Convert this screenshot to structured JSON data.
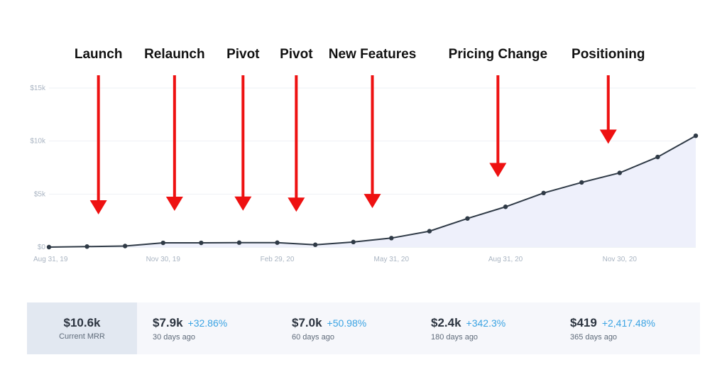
{
  "chart_data": {
    "type": "area",
    "ylim": [
      0,
      15000
    ],
    "yticks": [
      0,
      5000,
      10000,
      15000
    ],
    "ytick_labels": [
      "$0",
      "$5k",
      "$10k",
      "$15k"
    ],
    "xtick_labels": [
      "Aug 31, 19",
      "Nov 30, 19",
      "Feb 29, 20",
      "May 31, 20",
      "Aug 31, 20",
      "Nov 30, 20"
    ],
    "grid": true,
    "colors": {
      "line": "#2f3a46",
      "fill": "#eef0fb",
      "grid": "#eef1f5",
      "arrow": "#ee1111"
    },
    "series": [
      {
        "values": [
          0,
          50,
          100,
          400,
          400,
          420,
          420,
          220,
          480,
          850,
          1500,
          2700,
          3800,
          5100,
          6100,
          7000,
          8500,
          10500
        ]
      }
    ],
    "annotations": [
      {
        "label": "Launch",
        "index": 1.3
      },
      {
        "label": "Relaunch",
        "index": 3.3
      },
      {
        "label": "Pivot",
        "index": 5.1
      },
      {
        "label": "Pivot",
        "index": 6.5
      },
      {
        "label": "New Features",
        "index": 8.5
      },
      {
        "label": "Pricing Change",
        "index": 11.8
      },
      {
        "label": "Positioning",
        "index": 14.7
      }
    ]
  },
  "stats": {
    "current": {
      "value": "$10.6k",
      "caption": "Current MRR"
    },
    "items": [
      {
        "value": "$7.9k",
        "change": "+32.86%",
        "caption": "30 days ago"
      },
      {
        "value": "$7.0k",
        "change": "+50.98%",
        "caption": "60 days ago"
      },
      {
        "value": "$2.4k",
        "change": "+342.3%",
        "caption": "180 days ago"
      },
      {
        "value": "$419",
        "change": "+2,417.48%",
        "caption": "365 days ago"
      }
    ]
  }
}
